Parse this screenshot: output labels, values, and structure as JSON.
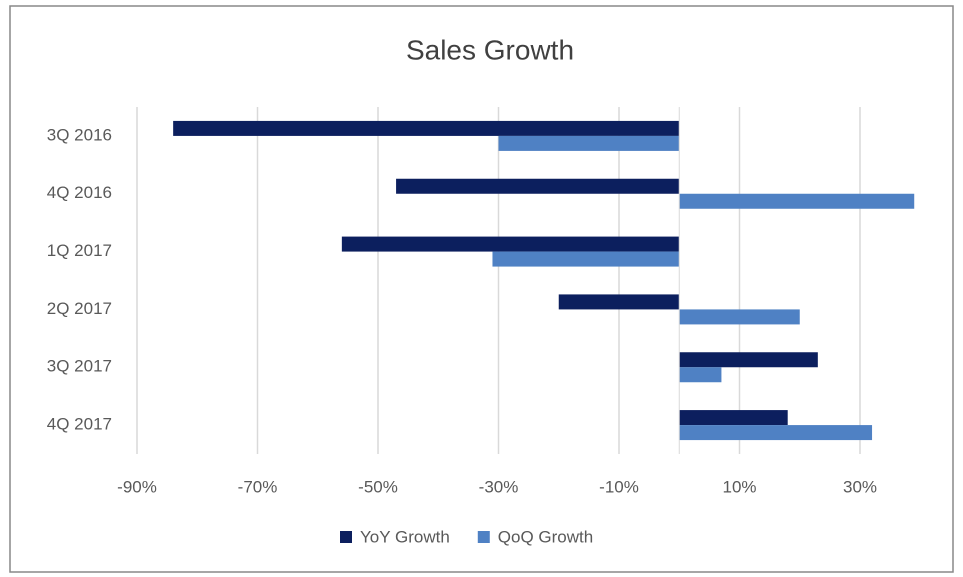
{
  "chart_data": {
    "type": "hbar",
    "title": "Sales Growth",
    "categories": [
      "3Q 2016",
      "4Q 2016",
      "1Q 2017",
      "2Q 2017",
      "3Q 2017",
      "4Q 2017"
    ],
    "series": [
      {
        "name": "YoY Growth",
        "color": "#0c1f5e",
        "values": [
          -84,
          -47,
          -56,
          -20,
          23,
          18
        ]
      },
      {
        "name": "QoQ Growth",
        "color": "#4f81c4",
        "values": [
          -30,
          39,
          -31,
          20,
          7,
          32
        ]
      }
    ],
    "xlim": [
      -90,
      40
    ],
    "xticks": [
      {
        "value": -90,
        "label": "-90%"
      },
      {
        "value": -70,
        "label": "-70%"
      },
      {
        "value": -50,
        "label": "-50%"
      },
      {
        "value": -30,
        "label": "-30%"
      },
      {
        "value": -10,
        "label": "-10%"
      },
      {
        "value": 10,
        "label": "10%"
      },
      {
        "value": 30,
        "label": "30%"
      }
    ],
    "grid": true,
    "legend": "bottom"
  }
}
